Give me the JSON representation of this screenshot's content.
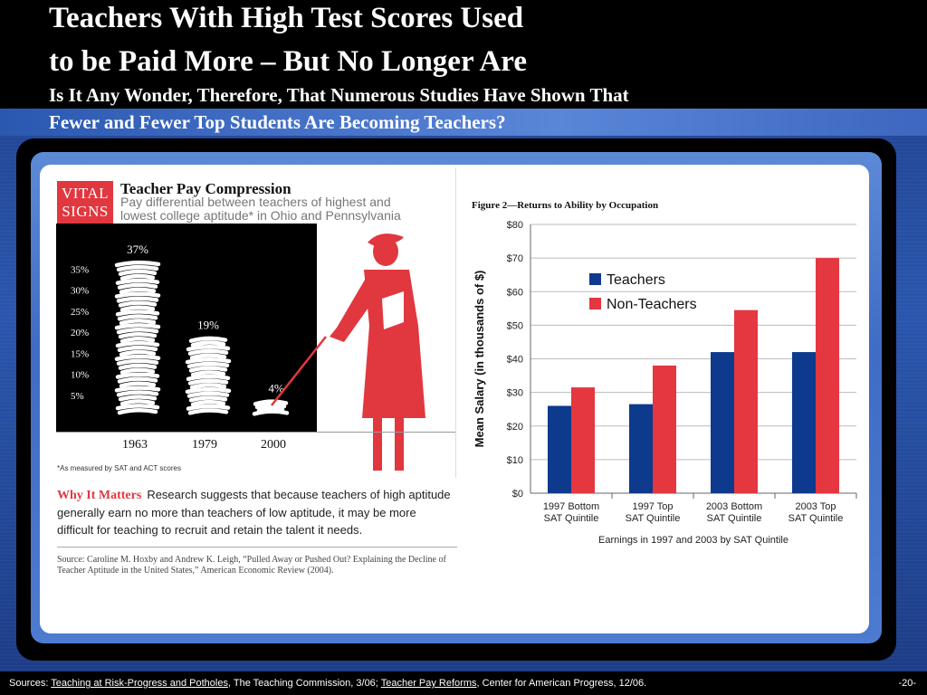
{
  "slide": {
    "title_line1": "Teachers With High Test Scores Used",
    "title_line2": "to be Paid More – But No Longer Are",
    "subtitle_line1": "Is It Any Wonder, Therefore, That Numerous Studies Have Shown That",
    "subtitle_line2": "Fewer and Fewer Top Students Are Becoming Teachers?",
    "page_number": "-20-"
  },
  "infographic": {
    "badge": "VITAL SIGNS",
    "title": "Teacher Pay Compression",
    "subtitle": "Pay differential between teachers of highest and lowest college aptitude* in Ohio and Pennsylvania",
    "ytick_labels": [
      "35%",
      "30%",
      "25%",
      "20%",
      "15%",
      "10%",
      "5%"
    ],
    "years": [
      "1963",
      "1979",
      "2000"
    ],
    "values": [
      37,
      19,
      4
    ],
    "value_labels": [
      "37%",
      "19%",
      "4%"
    ],
    "footnote": "*As measured by SAT and ACT scores",
    "why_label": "Why It Matters",
    "why_text": "Research suggests that because teachers of high aptitude generally earn no more than teachers of low aptitude, it may be more difficult for teaching to recruit and retain the talent it needs.",
    "source": "Source: Caroline M. Hoxby and Andrew K. Leigh, “Pulled Away or Pushed Out? Explaining the Decline of Teacher Aptitude in the United States,” American Economic Review (2004)."
  },
  "chart_data": {
    "type": "bar",
    "title": "Figure 2—Returns to Ability by Occupation",
    "xlabel": "Earnings in 1997 and 2003 by SAT Quintile",
    "ylabel": "Mean Salary (in thousands of $)",
    "categories": [
      "1997 Bottom SAT Quintile",
      "1997 Top SAT Quintile",
      "2003 Bottom SAT Quintile",
      "2003 Top SAT Quintile"
    ],
    "series": [
      {
        "name": "Teachers",
        "values": [
          26,
          26.5,
          42,
          42
        ]
      },
      {
        "name": "Non-Teachers",
        "values": [
          31.5,
          38,
          54.5,
          70
        ]
      }
    ],
    "ylim": [
      0,
      80
    ],
    "ytick_labels": [
      "$0",
      "$10",
      "$20",
      "$30",
      "$40",
      "$50",
      "$60",
      "$70",
      "$80"
    ],
    "grid": true,
    "legend": "top-left",
    "colors": {
      "Teachers": "#0d3a8c",
      "Non-Teachers": "#e4373f"
    }
  },
  "footer": {
    "prefix": "Sources: ",
    "link1": "Teaching at Risk-Progress and Potholes",
    "mid1": ", The Teaching Commission, 3/06; ",
    "link2": "Teacher Pay Reforms",
    "mid2": ", Center for American Progress, 12/06."
  },
  "colors": {
    "accent_red": "#e1373f",
    "slide_blue": "#2a56ad"
  }
}
